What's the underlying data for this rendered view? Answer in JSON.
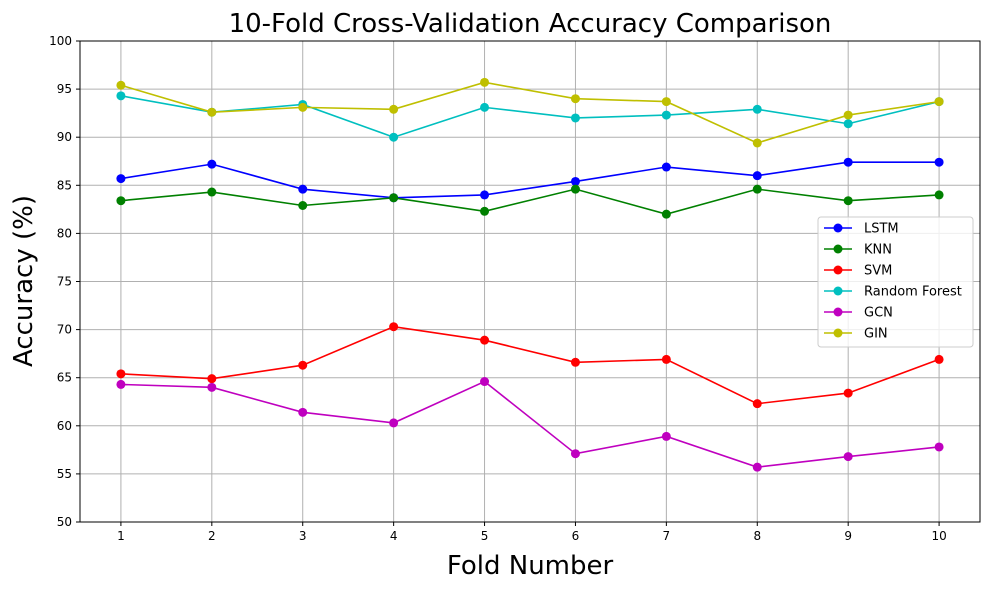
{
  "chart_data": {
    "type": "line",
    "title": "10-Fold Cross-Validation Accuracy Comparison",
    "xlabel": "Fold Number",
    "ylabel": "Accuracy (%)",
    "x": [
      1,
      2,
      3,
      4,
      5,
      6,
      7,
      8,
      9,
      10
    ],
    "xlim": [
      0.55,
      10.45
    ],
    "ylim": [
      50,
      100
    ],
    "yticks": [
      50,
      55,
      60,
      65,
      70,
      75,
      80,
      85,
      90,
      95,
      100
    ],
    "grid": true,
    "legend_position": "center-right",
    "series": [
      {
        "name": "LSTM",
        "color": "#0000ff",
        "values": [
          85.7,
          87.2,
          84.6,
          83.7,
          84.0,
          85.4,
          86.9,
          86.0,
          87.4,
          87.4
        ]
      },
      {
        "name": "KNN",
        "color": "#008000",
        "values": [
          83.4,
          84.3,
          82.9,
          83.7,
          82.3,
          84.6,
          82.0,
          84.6,
          83.4,
          84.0
        ]
      },
      {
        "name": "SVM",
        "color": "#ff0000",
        "values": [
          65.4,
          64.9,
          66.3,
          70.3,
          68.9,
          66.6,
          66.9,
          62.3,
          63.4,
          66.9
        ]
      },
      {
        "name": "Random Forest",
        "color": "#00bfbf",
        "values": [
          94.3,
          92.6,
          93.4,
          90.0,
          93.1,
          92.0,
          92.3,
          92.9,
          91.4,
          93.7
        ]
      },
      {
        "name": "GCN",
        "color": "#bf00bf",
        "values": [
          64.3,
          64.0,
          61.4,
          60.3,
          64.6,
          57.1,
          58.9,
          55.7,
          56.8,
          57.8
        ]
      },
      {
        "name": "GIN",
        "color": "#bfbf00",
        "values": [
          95.4,
          92.6,
          93.1,
          92.9,
          95.7,
          94.0,
          93.7,
          89.4,
          92.3,
          93.7
        ]
      }
    ]
  }
}
